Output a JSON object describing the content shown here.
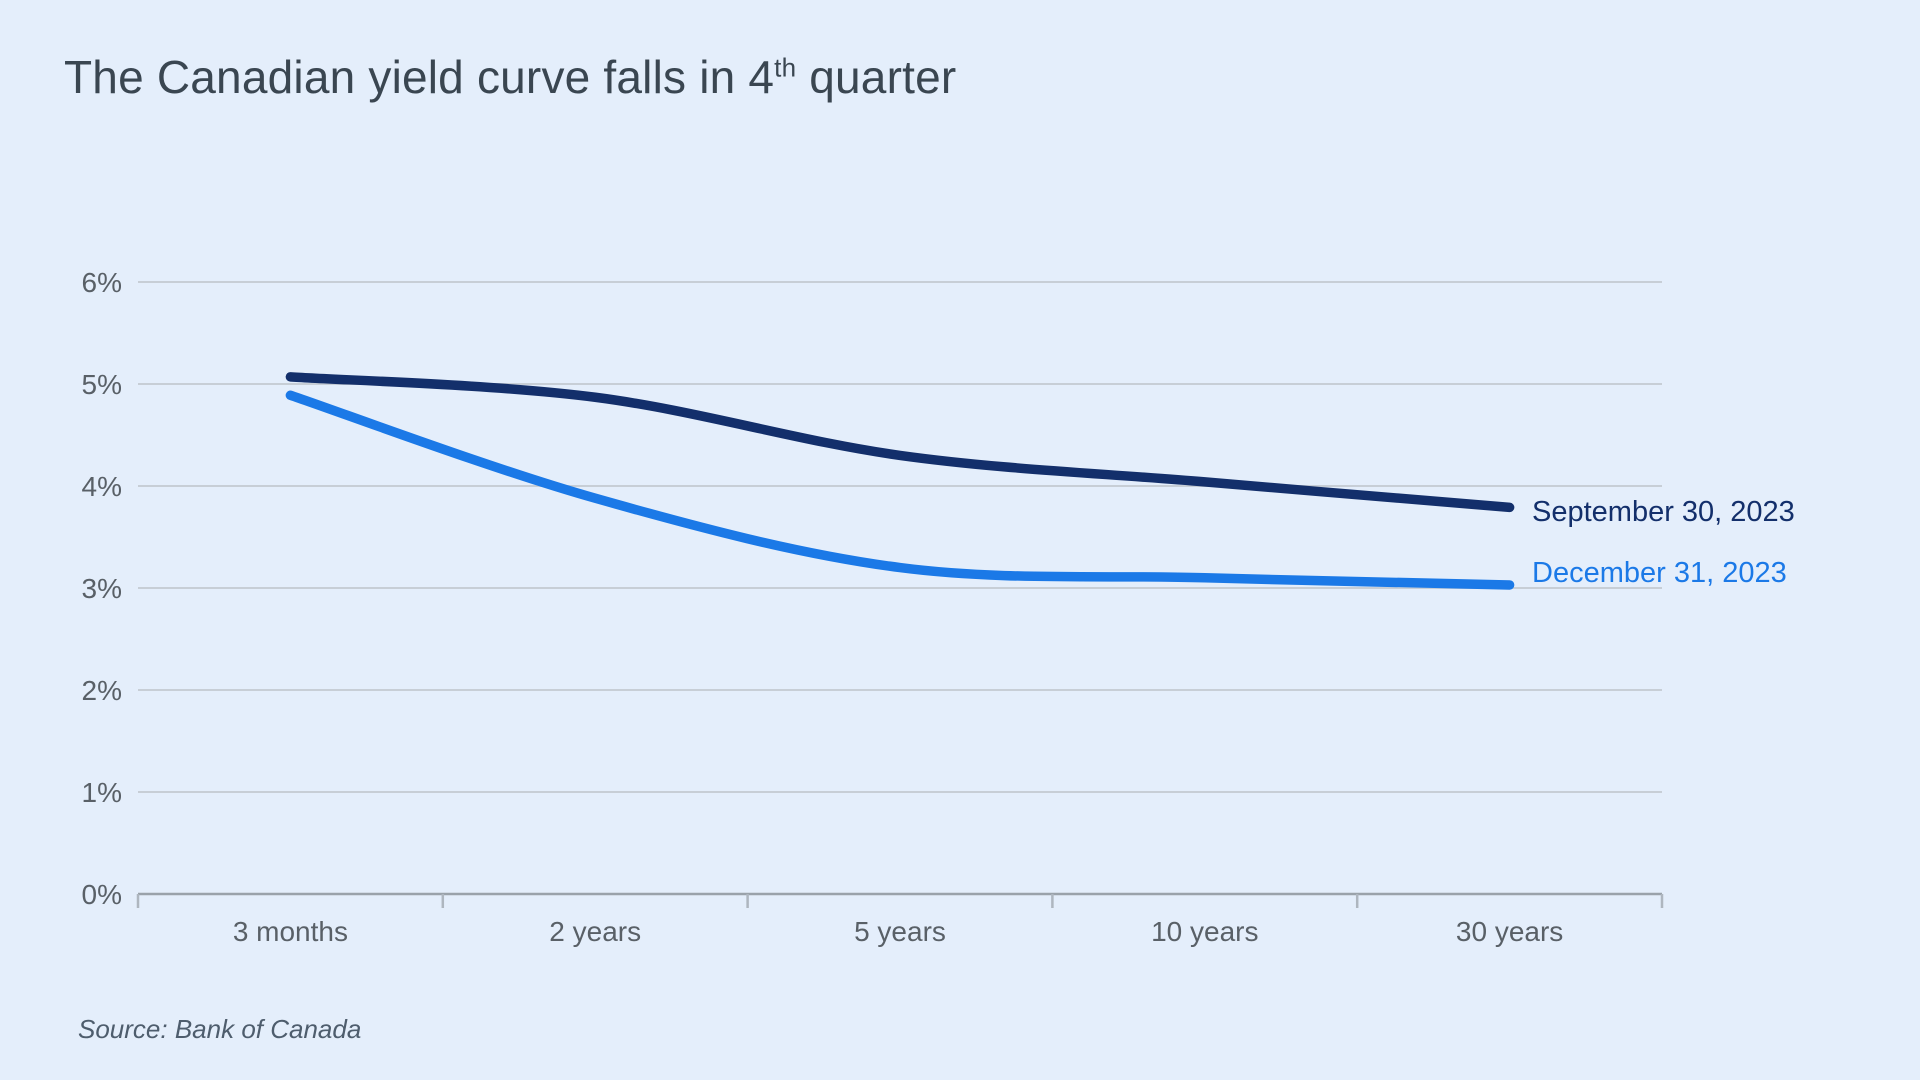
{
  "title": {
    "prefix": "The Canadian yield curve falls in 4",
    "superscript": "th",
    "suffix": " quarter"
  },
  "chart_data": {
    "type": "line",
    "title": "The Canadian yield curve falls in 4th quarter",
    "categories": [
      "3 months",
      "2 years",
      "5 years",
      "10 years",
      "30 years"
    ],
    "series": [
      {
        "name": "September 30, 2023",
        "color": "#132f6b",
        "values": [
          5.07,
          4.87,
          4.3,
          4.04,
          3.79
        ]
      },
      {
        "name": "December 31, 2023",
        "color": "#1b79e7",
        "values": [
          4.89,
          3.88,
          3.2,
          3.1,
          3.03
        ]
      }
    ],
    "yticks": [
      {
        "label": "0%",
        "value": 0
      },
      {
        "label": "1%",
        "value": 1
      },
      {
        "label": "2%",
        "value": 2
      },
      {
        "label": "3%",
        "value": 3
      },
      {
        "label": "4%",
        "value": 4
      },
      {
        "label": "5%",
        "value": 5
      },
      {
        "label": "6%",
        "value": 6
      }
    ],
    "ylim": [
      0,
      6
    ],
    "grid": true,
    "legend_position": "right of line ends",
    "source": "Source: Bank of Canada"
  },
  "colors": {
    "background": "#e4eefb",
    "title_text": "#3a4651",
    "axis_text": "#596067",
    "gridline": "#c7ced6",
    "axis_line": "#9aa2aa",
    "tick": "#aeb6bf",
    "source_text": "#4e5d6d"
  }
}
